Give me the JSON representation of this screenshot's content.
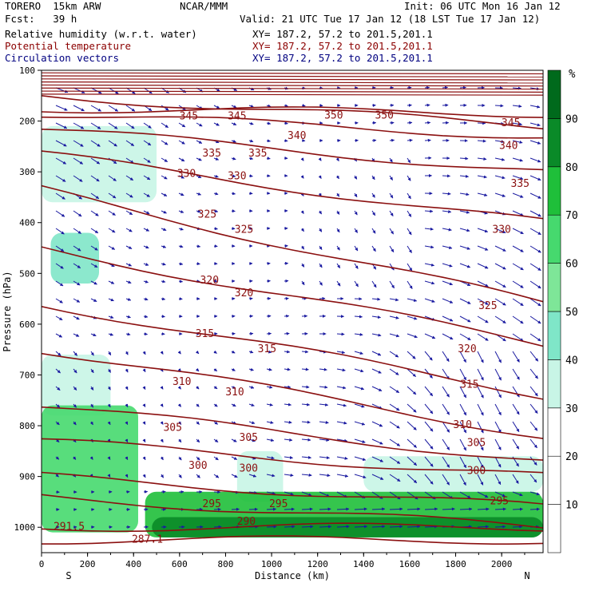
{
  "header": {
    "model": "TORERO  15km ARW",
    "fcst": "Fcst:   39 h",
    "center": "NCAR/MMM",
    "init": "Init: 06 UTC Mon 16 Jan 12",
    "valid": "Valid: 21 UTC Tue 17 Jan 12 (18 LST Tue 17 Jan 12)",
    "fields": [
      {
        "name": "Relative humidity (w.r.t. water)",
        "xy": "XY= 187.2, 57.2 to 201.5,201.1",
        "color": "#000000"
      },
      {
        "name": "Potential temperature",
        "xy": "XY= 187.2, 57.2 to 201.5,201.1",
        "color": "#8b0000"
      },
      {
        "name": "Circulation vectors",
        "xy": "XY= 187.2, 57.2 to 201.5,201.1",
        "color": "#000080"
      }
    ]
  },
  "chart_data": {
    "type": "heatmap",
    "xlabel": "Distance (km)",
    "ylabel": "Pressure (hPa)",
    "xlim": [
      0,
      2180
    ],
    "ylim": [
      1050,
      100
    ],
    "x_ticks": [
      0,
      200,
      400,
      600,
      800,
      1000,
      1200,
      1400,
      1600,
      1800,
      2000
    ],
    "y_ticks": [
      100,
      200,
      300,
      400,
      500,
      600,
      700,
      800,
      900,
      1000
    ],
    "x_end_labels": {
      "left": "S",
      "right": "N"
    },
    "colorbar": {
      "unit": "%",
      "levels": [
        10,
        20,
        30,
        40,
        50,
        60,
        70,
        80,
        90
      ],
      "colors": [
        "#ffffff",
        "#ffffff",
        "#ffffff",
        "#c8f5e6",
        "#7fe6c8",
        "#7ee698",
        "#46d96e",
        "#1fbf3a",
        "#0a8a28",
        "#006a1c"
      ]
    },
    "theta_contours": [
      {
        "label": "345",
        "pressure_west": 150,
        "pressure_east": 210
      },
      {
        "label": "350",
        "pressure_west": 175,
        "pressure_east": 185
      },
      {
        "label": "340",
        "pressure_west": 185,
        "pressure_east": 230
      },
      {
        "label": "335",
        "pressure_west": 215,
        "pressure_east": 300
      },
      {
        "label": "330",
        "pressure_west": 265,
        "pressure_east": 400
      },
      {
        "label": "325",
        "pressure_west": 335,
        "pressure_east": 560
      },
      {
        "label": "320",
        "pressure_west": 450,
        "pressure_east": 640
      },
      {
        "label": "315",
        "pressure_west": 560,
        "pressure_east": 740
      },
      {
        "label": "310",
        "pressure_west": 650,
        "pressure_east": 820
      },
      {
        "label": "305",
        "pressure_west": 760,
        "pressure_east": 870
      },
      {
        "label": "300",
        "pressure_west": 830,
        "pressure_east": 900
      },
      {
        "label": "295",
        "pressure_west": 900,
        "pressure_east": 960
      },
      {
        "label": "290",
        "pressure_west": 940,
        "pressure_east": 1000
      },
      {
        "label": "291.5",
        "pressure_west": 1000,
        "pressure_east": 1000
      },
      {
        "label": "287.1",
        "pressure_west": 1025,
        "pressure_east": 1025
      }
    ],
    "theta_label_positions": [
      {
        "label": "345",
        "x": 640,
        "p": 197
      },
      {
        "label": "345",
        "x": 850,
        "p": 197
      },
      {
        "label": "350",
        "x": 1270,
        "p": 195
      },
      {
        "label": "350",
        "x": 1490,
        "p": 195
      },
      {
        "label": "345",
        "x": 2040,
        "p": 210
      },
      {
        "label": "340",
        "x": 1110,
        "p": 235
      },
      {
        "label": "340",
        "x": 2030,
        "p": 255
      },
      {
        "label": "335",
        "x": 740,
        "p": 270
      },
      {
        "label": "335",
        "x": 940,
        "p": 270
      },
      {
        "label": "335",
        "x": 2080,
        "p": 330
      },
      {
        "label": "330",
        "x": 630,
        "p": 310
      },
      {
        "label": "330",
        "x": 850,
        "p": 315
      },
      {
        "label": "330",
        "x": 2000,
        "p": 420
      },
      {
        "label": "325",
        "x": 720,
        "p": 390
      },
      {
        "label": "325",
        "x": 880,
        "p": 420
      },
      {
        "label": "325",
        "x": 1940,
        "p": 570
      },
      {
        "label": "320",
        "x": 730,
        "p": 520
      },
      {
        "label": "320",
        "x": 880,
        "p": 545
      },
      {
        "label": "320",
        "x": 1850,
        "p": 655
      },
      {
        "label": "315",
        "x": 710,
        "p": 625
      },
      {
        "label": "315",
        "x": 980,
        "p": 655
      },
      {
        "label": "315",
        "x": 1860,
        "p": 725
      },
      {
        "label": "310",
        "x": 610,
        "p": 720
      },
      {
        "label": "310",
        "x": 840,
        "p": 740
      },
      {
        "label": "310",
        "x": 1830,
        "p": 805
      },
      {
        "label": "305",
        "x": 570,
        "p": 810
      },
      {
        "label": "305",
        "x": 900,
        "p": 830
      },
      {
        "label": "305",
        "x": 1890,
        "p": 840
      },
      {
        "label": "300",
        "x": 680,
        "p": 885
      },
      {
        "label": "300",
        "x": 900,
        "p": 890
      },
      {
        "label": "300",
        "x": 1890,
        "p": 895
      },
      {
        "label": "295",
        "x": 740,
        "p": 960
      },
      {
        "label": "295",
        "x": 1030,
        "p": 960
      },
      {
        "label": "295",
        "x": 1990,
        "p": 955
      },
      {
        "label": "290",
        "x": 890,
        "p": 995
      },
      {
        "label": "291.5",
        "x": 120,
        "p": 1005
      },
      {
        "label": "287.1",
        "x": 460,
        "p": 1030
      }
    ],
    "rh_regions": [
      {
        "level": 30,
        "x": [
          0,
          500
        ],
        "p": [
          210,
          360
        ]
      },
      {
        "level": 40,
        "x": [
          40,
          250
        ],
        "p": [
          420,
          520
        ]
      },
      {
        "level": 30,
        "x": [
          0,
          300
        ],
        "p": [
          660,
          780
        ]
      },
      {
        "level": 60,
        "x": [
          0,
          420
        ],
        "p": [
          760,
          1010
        ]
      },
      {
        "level": 30,
        "x": [
          850,
          1050
        ],
        "p": [
          850,
          950
        ]
      },
      {
        "level": 30,
        "x": [
          1400,
          2180
        ],
        "p": [
          860,
          930
        ]
      },
      {
        "level": 70,
        "x": [
          450,
          2180
        ],
        "p": [
          930,
          1020
        ]
      },
      {
        "level": 80,
        "x": [
          480,
          2180
        ],
        "p": [
          980,
          1020
        ]
      }
    ]
  }
}
